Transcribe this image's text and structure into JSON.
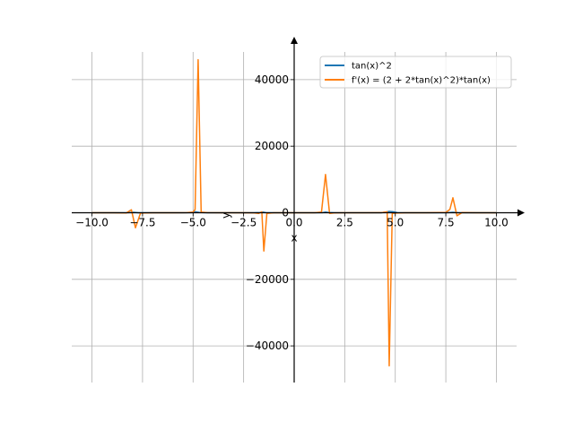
{
  "chart_data": {
    "type": "line",
    "xlabel": "x",
    "ylabel": "y",
    "xlim": [
      -11.0,
      11.0
    ],
    "ylim": [
      -51000,
      51000
    ],
    "grid": true,
    "legend_position": "top-right",
    "xticks": [
      {
        "value": -10.0,
        "label": "−10.0"
      },
      {
        "value": -7.5,
        "label": "−7.5"
      },
      {
        "value": -5.0,
        "label": "−5.0"
      },
      {
        "value": -2.5,
        "label": "−2.5"
      },
      {
        "value": 0.0,
        "label": "0.0"
      },
      {
        "value": 2.5,
        "label": "2.5"
      },
      {
        "value": 5.0,
        "label": "5.0"
      },
      {
        "value": 7.5,
        "label": "7.5"
      },
      {
        "value": 10.0,
        "label": "10.0"
      }
    ],
    "yticks": [
      {
        "value": -40000,
        "label": "−40000"
      },
      {
        "value": -20000,
        "label": "−20000"
      },
      {
        "value": 0,
        "label": "0"
      },
      {
        "value": 20000,
        "label": "20000"
      },
      {
        "value": 40000,
        "label": "40000"
      }
    ],
    "series": [
      {
        "name": "tan(x)^2",
        "color": "#1f77b4",
        "points": [
          [
            -10.0,
            0.42
          ],
          [
            -9.0,
            0.21
          ],
          [
            -8.5,
            3.58
          ],
          [
            -8.2,
            30.0
          ],
          [
            -7.95,
            120.0
          ],
          [
            -7.7,
            10.0
          ],
          [
            -7.0,
            0.75
          ],
          [
            -6.0,
            0.08
          ],
          [
            -5.5,
            0.57
          ],
          [
            -5.1,
            25.0
          ],
          [
            -4.9,
            300.0
          ],
          [
            -4.7,
            100.0
          ],
          [
            -4.3,
            5.0
          ],
          [
            -3.5,
            0.14
          ],
          [
            -2.5,
            0.56
          ],
          [
            -2.0,
            4.77
          ],
          [
            -1.7,
            60.0
          ],
          [
            -1.55,
            200.0
          ],
          [
            -1.4,
            30.0
          ],
          [
            -1.0,
            2.43
          ],
          [
            0.0,
            0.0
          ],
          [
            1.0,
            2.43
          ],
          [
            1.4,
            30.0
          ],
          [
            1.55,
            200.0
          ],
          [
            1.7,
            60.0
          ],
          [
            2.0,
            4.77
          ],
          [
            2.5,
            0.56
          ],
          [
            3.5,
            0.14
          ],
          [
            4.3,
            5.0
          ],
          [
            4.55,
            200.0
          ],
          [
            4.7,
            400.0
          ],
          [
            4.9,
            300.0
          ],
          [
            5.1,
            25.0
          ],
          [
            5.5,
            0.57
          ],
          [
            6.0,
            0.08
          ],
          [
            7.0,
            0.75
          ],
          [
            7.6,
            30.0
          ],
          [
            7.85,
            150.0
          ],
          [
            8.1,
            30.0
          ],
          [
            8.5,
            3.58
          ],
          [
            9.0,
            0.21
          ],
          [
            10.0,
            0.42
          ]
        ]
      },
      {
        "name": "f'(x) = (2 + 2*tan(x)^2)*tan(x)",
        "color": "#ff7f0e",
        "points": [
          [
            -10.0,
            10.0
          ],
          [
            -9.0,
            -5.0
          ],
          [
            -8.3,
            -50.0
          ],
          [
            -8.05,
            900.0
          ],
          [
            -7.85,
            -4500.0
          ],
          [
            -7.6,
            -100.0
          ],
          [
            -7.0,
            -10.0
          ],
          [
            -6.0,
            0.0
          ],
          [
            -5.3,
            20.0
          ],
          [
            -5.0,
            200.0
          ],
          [
            -4.9,
            1000.0
          ],
          [
            -4.75,
            46000.0
          ],
          [
            -4.6,
            200.0
          ],
          [
            -4.3,
            20.0
          ],
          [
            -3.5,
            0.5
          ],
          [
            -2.5,
            -2.0
          ],
          [
            -2.0,
            -20.0
          ],
          [
            -1.75,
            -200.0
          ],
          [
            -1.6,
            300.0
          ],
          [
            -1.5,
            -11500.0
          ],
          [
            -1.35,
            -200.0
          ],
          [
            -1.0,
            -10.0
          ],
          [
            0.0,
            0.0
          ],
          [
            1.0,
            10.0
          ],
          [
            1.35,
            200.0
          ],
          [
            1.55,
            11500.0
          ],
          [
            1.75,
            -200.0
          ],
          [
            2.0,
            -20.0
          ],
          [
            2.5,
            -2.0
          ],
          [
            3.5,
            0.5
          ],
          [
            4.3,
            20.0
          ],
          [
            4.6,
            300.0
          ],
          [
            4.7,
            -46000.0
          ],
          [
            4.85,
            -200.0
          ],
          [
            5.0,
            -100.0
          ],
          [
            5.5,
            -5.0
          ],
          [
            6.5,
            0.0
          ],
          [
            7.5,
            100.0
          ],
          [
            7.7,
            1000.0
          ],
          [
            7.85,
            4500.0
          ],
          [
            8.05,
            -900.0
          ],
          [
            8.3,
            50.0
          ],
          [
            9.0,
            5.0
          ],
          [
            10.0,
            10.0
          ]
        ]
      }
    ]
  }
}
